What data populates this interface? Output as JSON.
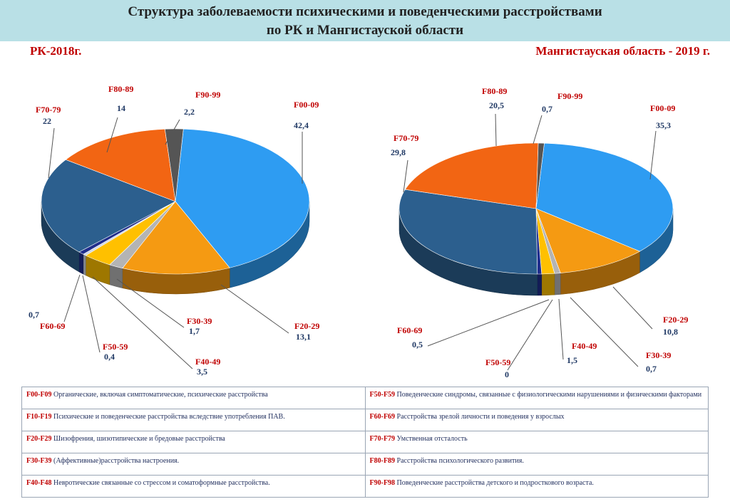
{
  "title": {
    "line1": "Структура заболеваемости психическими и поведенческими расстройствами",
    "line2": "по РК и Мангистауской области"
  },
  "chart_data": [
    {
      "type": "pie",
      "title": "РК-2018г.",
      "slices": [
        {
          "code": "F00-09",
          "value": 42.4,
          "label": "42,4",
          "color": "#2e9cf2"
        },
        {
          "code": "F20-29",
          "value": 13.1,
          "label": "13,1",
          "color": "#f59a12"
        },
        {
          "code": "F30-39",
          "value": 1.7,
          "label": "1,7",
          "color": "#b4b4b4"
        },
        {
          "code": "F40-49",
          "value": 3.5,
          "label": "3,5",
          "color": "#ffc000"
        },
        {
          "code": "F50-59",
          "value": 0.4,
          "label": "0,4",
          "color": "#cfd7e6"
        },
        {
          "code": "F60-69",
          "value": 0.7,
          "label": "0,7",
          "color": "#1f2d8c"
        },
        {
          "code": "F70-79",
          "value": 22,
          "label": "22",
          "color": "#2c5f8e"
        },
        {
          "code": "F80-89",
          "value": 14,
          "label": "14",
          "color": "#f26513"
        },
        {
          "code": "F90-99",
          "value": 2.2,
          "label": "2,2",
          "color": "#555555"
        }
      ]
    },
    {
      "type": "pie",
      "title": "Мангистауская область - 2019 г.",
      "slices": [
        {
          "code": "F00-09",
          "value": 35.3,
          "label": "35,3",
          "color": "#2e9cf2"
        },
        {
          "code": "F20-29",
          "value": 10.8,
          "label": "10,8",
          "color": "#f59a12"
        },
        {
          "code": "F30-39",
          "value": 0.7,
          "label": "0,7",
          "color": "#b4b4b4"
        },
        {
          "code": "F40-49",
          "value": 1.5,
          "label": "1,5",
          "color": "#ffc000"
        },
        {
          "code": "F50-59",
          "value": 0,
          "label": "0",
          "color": "#cfd7e6"
        },
        {
          "code": "F60-69",
          "value": 0.5,
          "label": "0,5",
          "color": "#1f2d8c"
        },
        {
          "code": "F70-79",
          "value": 29.8,
          "label": "29,8",
          "color": "#2c5f8e"
        },
        {
          "code": "F80-89",
          "value": 20.5,
          "label": "20,5",
          "color": "#f26513"
        },
        {
          "code": "F90-99",
          "value": 0.7,
          "label": "0,7",
          "color": "#555555"
        }
      ]
    }
  ],
  "legend": [
    {
      "code": "F00-F09",
      "text": "Органические, включая симптоматические, психические расстройства"
    },
    {
      "code": "F50-F59",
      "text": "Поведенческие синдромы, связанные с физиологическими нарушениями и физическими факторами"
    },
    {
      "code": "F10-F19",
      "text": "Психические и поведенческие расстройства вследствие употребления ПАВ."
    },
    {
      "code": "F60-F69",
      "text": "Расстройства зрелой личности и поведения у взрослых"
    },
    {
      "code": "F20-F29",
      "text": "Шизофрения, шизотипические и бредовые расстройства"
    },
    {
      "code": "F70-F79",
      "text": "Умственная отсталость"
    },
    {
      "code": "F30-F39",
      "text": "(Аффективные)расстройства настроения."
    },
    {
      "code": "F80-F89",
      "text": "Расстройства психологического развития."
    },
    {
      "code": "F40-F48",
      "text": "Невротические связанные со стрессом и соматоформные расстройства."
    },
    {
      "code": "F90-F98",
      "text": "Поведенческие расстройства детского и подросткового возраста."
    }
  ]
}
